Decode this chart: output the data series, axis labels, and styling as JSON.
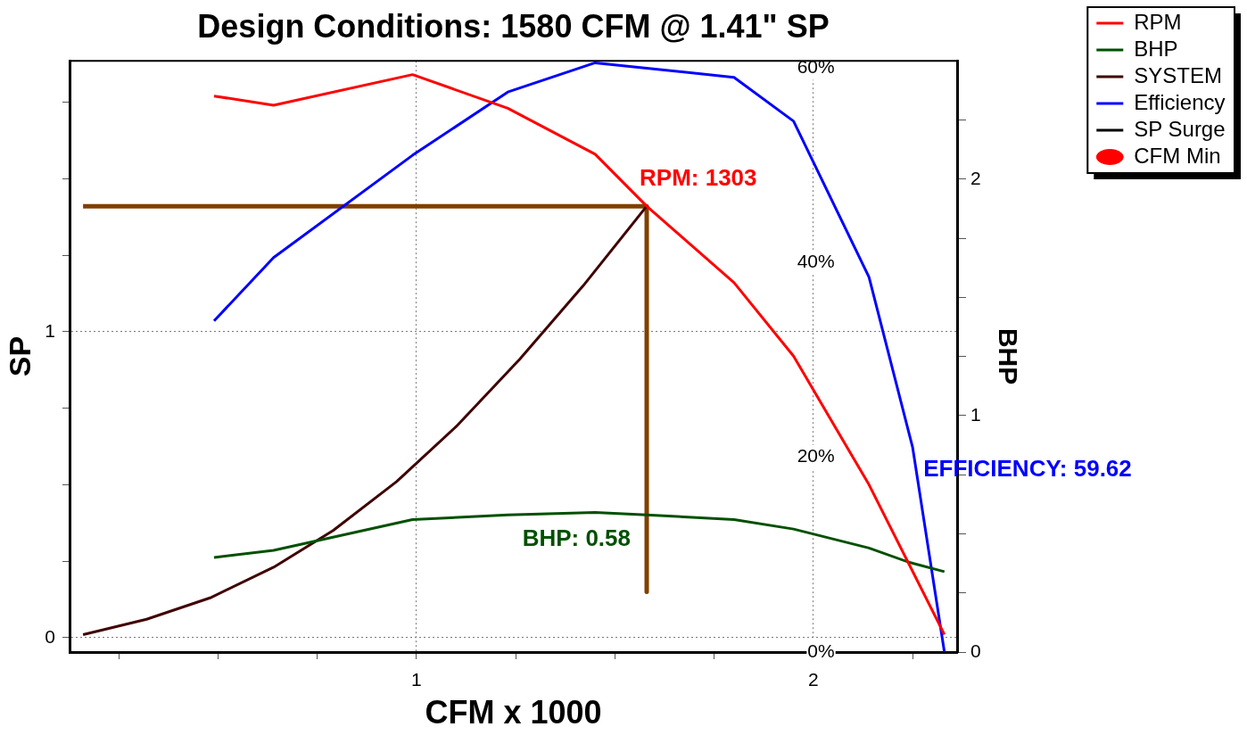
{
  "chart_data": {
    "type": "line",
    "title": "Design Conditions: 1580 CFM @ 1.41\" SP",
    "xlabel": "CFM x 1000",
    "ylabel": "SP",
    "y2label": "BHP",
    "xlim": [
      0.126,
      2.362
    ],
    "xticks": [
      {
        "value": 0.25,
        "label": null
      },
      {
        "value": 0.5,
        "label": null
      },
      {
        "value": 0.75,
        "label": null
      },
      1,
      {
        "value": 1.25,
        "label": null
      },
      {
        "value": 1.5,
        "label": null
      },
      {
        "value": 1.75,
        "label": null
      },
      2,
      {
        "value": 2.25,
        "label": null
      }
    ],
    "ylim": [
      -0.047,
      1.885
    ],
    "yticks": [
      0,
      {
        "value": 0.25,
        "label": null
      },
      {
        "value": 0.5,
        "label": null
      },
      {
        "value": 0.75,
        "label": null
      },
      1,
      {
        "value": 1.25,
        "label": null
      },
      {
        "value": 1.5,
        "label": null
      },
      {
        "value": 1.75,
        "label": null
      }
    ],
    "y2lim": [
      0,
      2.5
    ],
    "y2ticks": [
      0,
      {
        "value": 0.25,
        "label": null
      },
      {
        "value": 0.5,
        "label": null
      },
      {
        "value": 0.75,
        "label": null
      },
      1,
      {
        "value": 1.25,
        "label": null
      },
      {
        "value": 1.5,
        "label": null
      },
      {
        "value": 1.75,
        "label": null
      },
      2,
      {
        "value": 2.25,
        "label": null
      }
    ],
    "y3lim": [
      0,
      60.7
    ],
    "y3ticks": [
      {
        "value": 0,
        "label": "0%"
      },
      {
        "value": 20,
        "label": "20%"
      },
      {
        "value": 40,
        "label": "40%"
      },
      {
        "value": 60,
        "label": "60%"
      }
    ],
    "grid": true,
    "legend": "top right",
    "series": [
      {
        "name": "RPM",
        "color": "#ff0000",
        "x": [
          0.49,
          0.64,
          0.99,
          1.23,
          1.45,
          1.58,
          1.8,
          1.95,
          2.14,
          2.33
        ],
        "values": [
          1.77,
          1.74,
          1.84,
          1.73,
          1.58,
          1.41,
          1.16,
          0.92,
          0.5,
          0.01
        ]
      },
      {
        "name": "BHP",
        "color": "#005000",
        "axis": "y2",
        "x": [
          0.49,
          0.64,
          0.99,
          1.23,
          1.45,
          1.58,
          1.8,
          1.95,
          2.14,
          2.24,
          2.33
        ],
        "values": [
          0.4,
          0.43,
          0.56,
          0.58,
          0.59,
          0.58,
          0.56,
          0.52,
          0.44,
          0.38,
          0.34
        ],
        "value_labels": [
          null,
          null,
          null,
          null,
          null,
          "BHP: 0.58",
          null,
          null,
          null,
          null,
          null
        ]
      },
      {
        "name": "SYSTEM",
        "color": "#400000",
        "x": [
          0.16,
          0.32,
          0.48,
          0.64,
          0.79,
          0.95,
          1.1,
          1.26,
          1.42,
          1.58
        ],
        "values": [
          0.01,
          0.06,
          0.13,
          0.23,
          0.35,
          0.51,
          0.69,
          0.91,
          1.15,
          1.41
        ]
      },
      {
        "name": "Efficiency",
        "color": "#0000ff",
        "axis": "y3",
        "x": [
          0.49,
          0.64,
          0.99,
          1.23,
          1.45,
          1.8,
          1.95,
          2.14,
          2.25,
          2.33
        ],
        "values": [
          34,
          40.5,
          51,
          57.5,
          60.5,
          59,
          54.5,
          38.5,
          21,
          0
        ]
      },
      {
        "name": "SP Surge",
        "color": "#000000"
      },
      {
        "name": "CFM Min",
        "type": "scatter",
        "color": "#ff0000"
      },
      {
        "color": "#804000",
        "x": [
          0.16,
          1.58,
          1.58
        ],
        "values": [
          1.41,
          1.41,
          0.15
        ]
      }
    ],
    "annotations": [
      {
        "text": "RPM: 1303",
        "x": 1.58,
        "y": 1.41
      },
      "EFFICIENCY: 59.62"
    ]
  }
}
